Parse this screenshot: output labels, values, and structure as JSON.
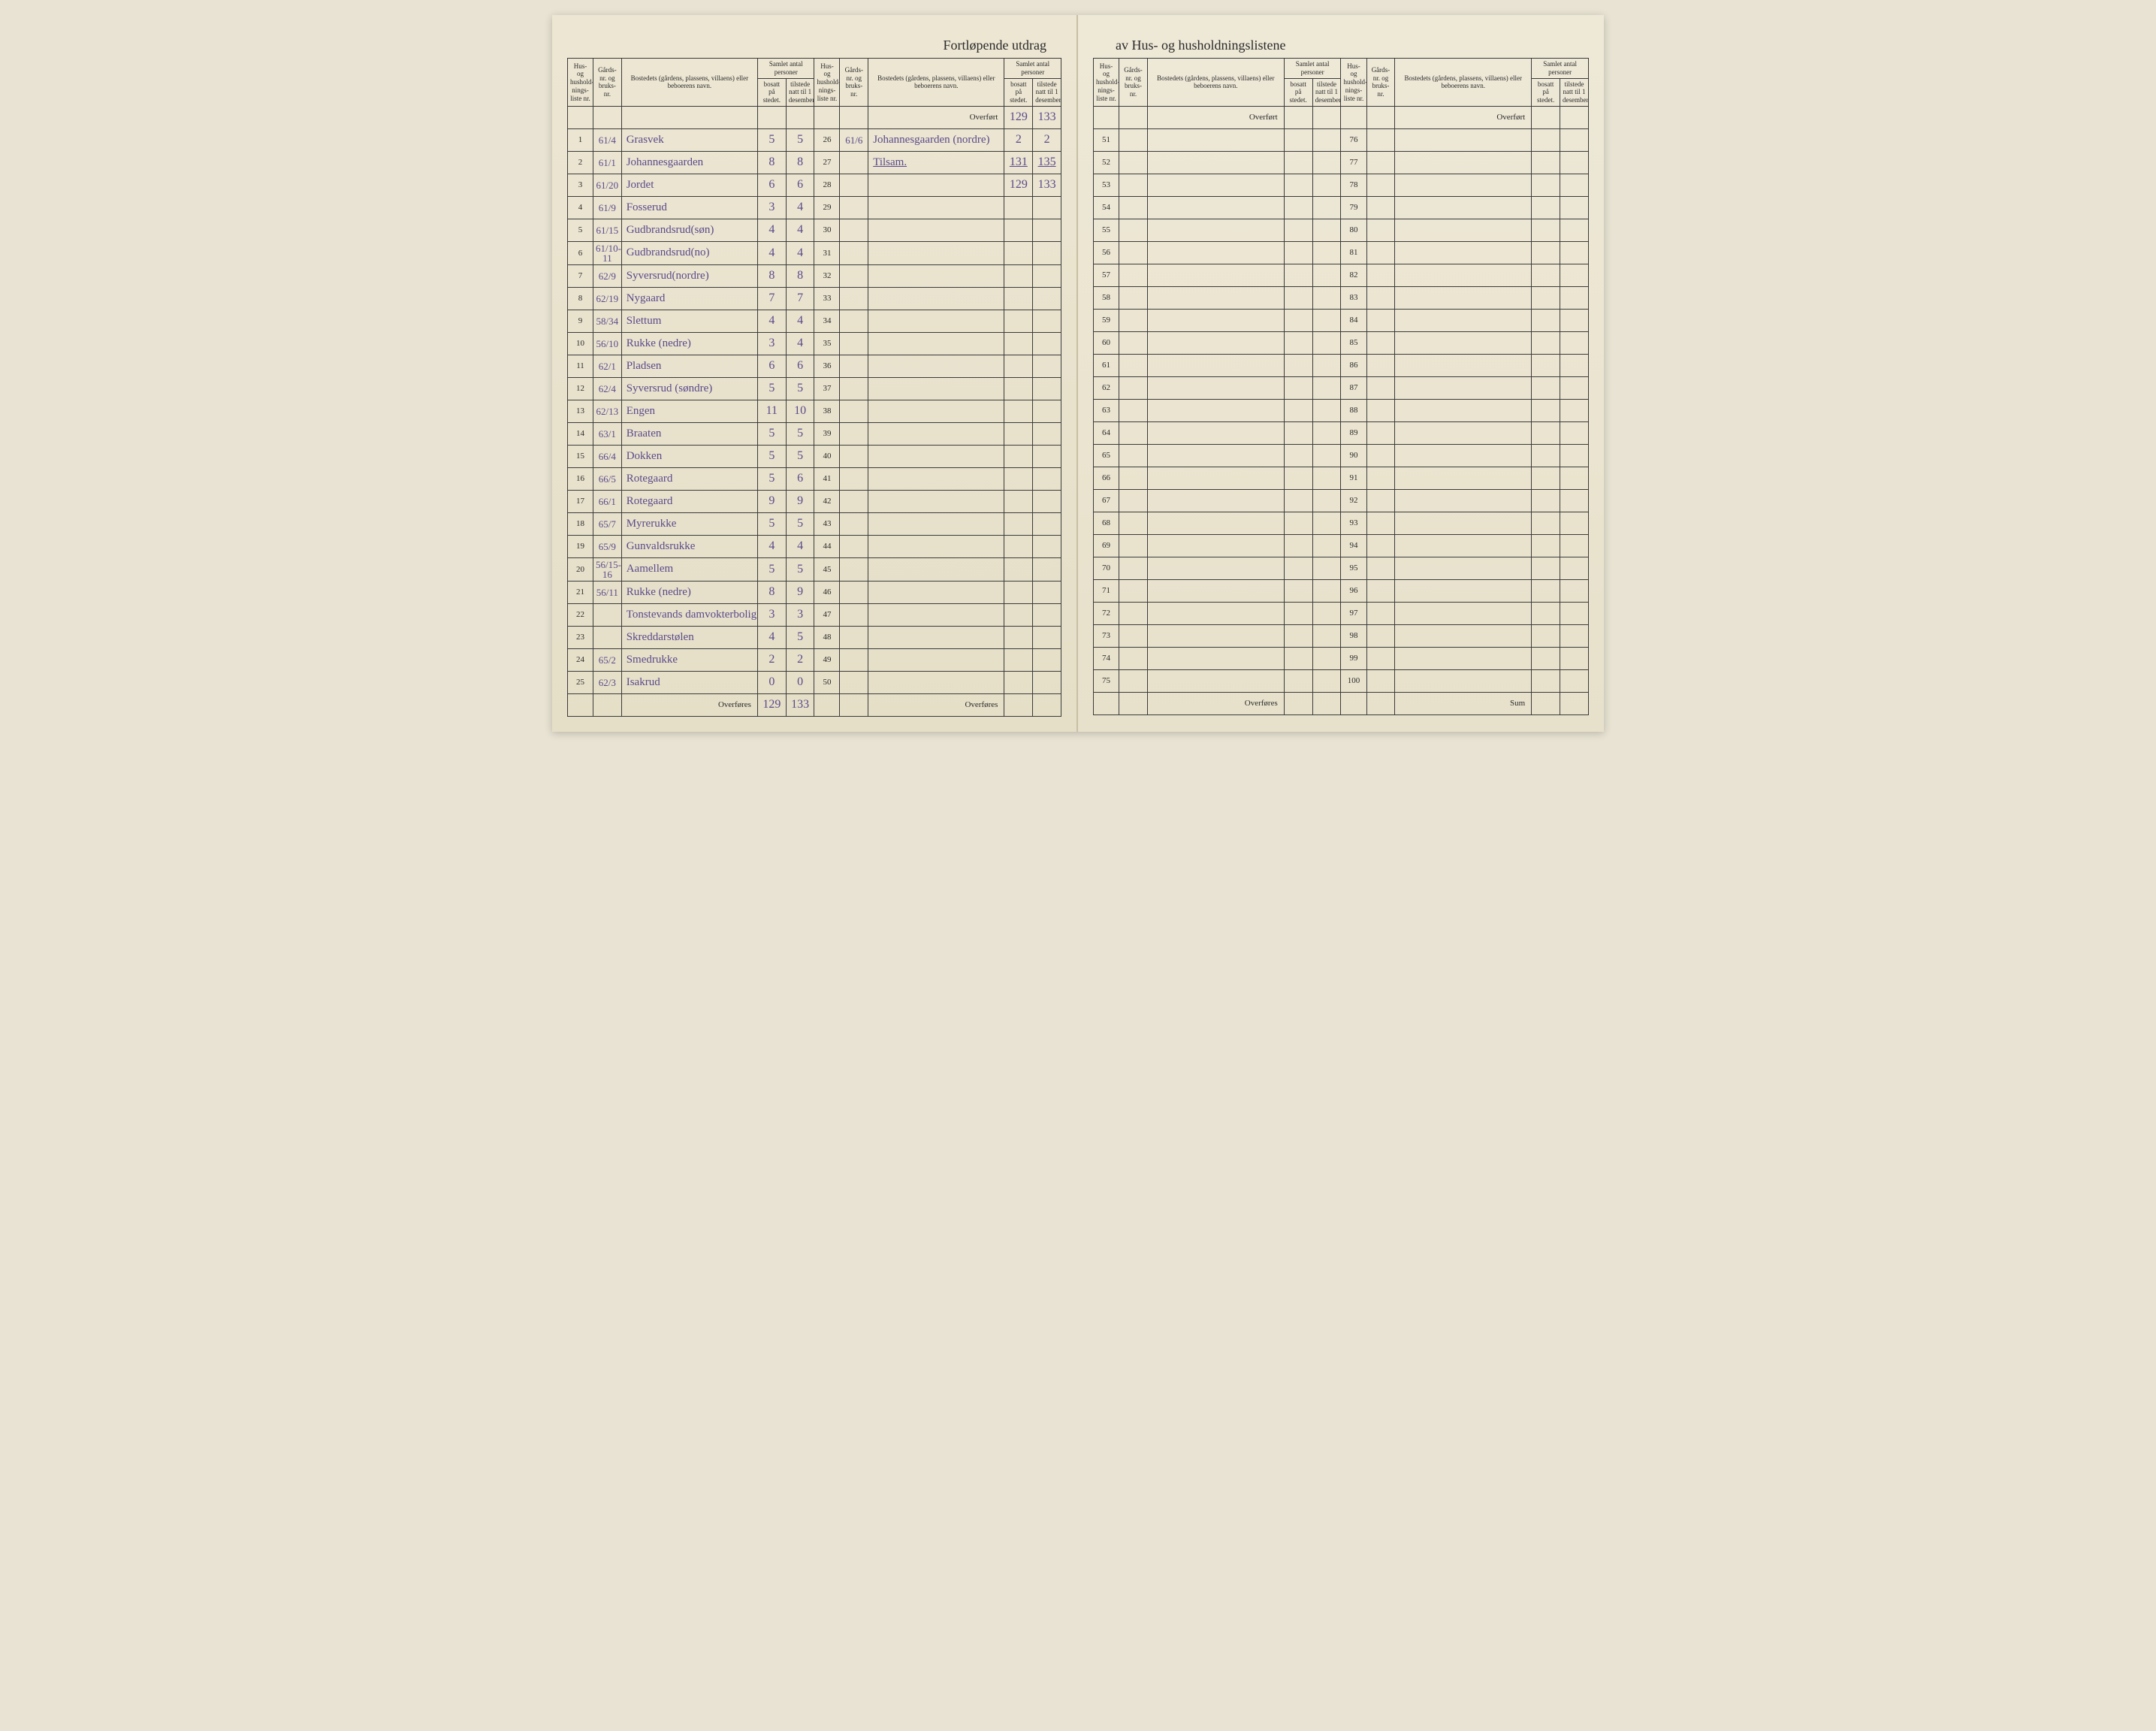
{
  "title_left": "Fortløpende utdrag",
  "title_right": "av Hus- og husholdningslistene",
  "headers": {
    "liste": "Hus- og hushold-nings-liste nr.",
    "gards": "Gårds-nr. og bruks-nr.",
    "bosted": "Bostedets (gårdens, plassens, villaens) eller beboerens navn.",
    "samlet": "Samlet antal personer",
    "bosatt": "bosatt på stedet.",
    "tilstede": "tilstede natt til 1 desember."
  },
  "labels": {
    "overfort": "Overført",
    "overfores": "Overføres",
    "tilsam": "Tilsam.",
    "sum": "Sum"
  },
  "colors": {
    "ink": "#5a4a8a",
    "print": "#2a2a2a",
    "paper": "#ebe5d2",
    "border": "#3a3a3a"
  },
  "col1": [
    {
      "n": 1,
      "g": "61/4",
      "name": "Grasvek",
      "b": "5",
      "t": "5"
    },
    {
      "n": 2,
      "g": "61/1",
      "name": "Johannesgaarden",
      "b": "8",
      "t": "8"
    },
    {
      "n": 3,
      "g": "61/20",
      "name": "Jordet",
      "b": "6",
      "t": "6"
    },
    {
      "n": 4,
      "g": "61/9",
      "name": "Fosserud",
      "b": "3",
      "t": "4"
    },
    {
      "n": 5,
      "g": "61/15",
      "name": "Gudbrandsrud(søn)",
      "b": "4",
      "t": "4"
    },
    {
      "n": 6,
      "g": "61/10-11",
      "name": "Gudbrandsrud(no)",
      "b": "4",
      "t": "4"
    },
    {
      "n": 7,
      "g": "62/9",
      "name": "Syversrud(nordre)",
      "b": "8",
      "t": "8"
    },
    {
      "n": 8,
      "g": "62/19",
      "name": "Nygaard",
      "b": "7",
      "t": "7"
    },
    {
      "n": 9,
      "g": "58/34",
      "name": "Slettum",
      "b": "4",
      "t": "4"
    },
    {
      "n": 10,
      "g": "56/10",
      "name": "Rukke (nedre)",
      "b": "3",
      "t": "4"
    },
    {
      "n": 11,
      "g": "62/1",
      "name": "Pladsen",
      "b": "6",
      "t": "6"
    },
    {
      "n": 12,
      "g": "62/4",
      "name": "Syversrud (søndre)",
      "b": "5",
      "t": "5"
    },
    {
      "n": 13,
      "g": "62/13",
      "name": "Engen",
      "b": "11",
      "t": "10"
    },
    {
      "n": 14,
      "g": "63/1",
      "name": "Braaten",
      "b": "5",
      "t": "5"
    },
    {
      "n": 15,
      "g": "66/4",
      "name": "Dokken",
      "b": "5",
      "t": "5"
    },
    {
      "n": 16,
      "g": "66/5",
      "name": "Rotegaard",
      "b": "5",
      "t": "6"
    },
    {
      "n": 17,
      "g": "66/1",
      "name": "Rotegaard",
      "b": "9",
      "t": "9"
    },
    {
      "n": 18,
      "g": "65/7",
      "name": "Myrerukke",
      "b": "5",
      "t": "5"
    },
    {
      "n": 19,
      "g": "65/9",
      "name": "Gunvaldsrukke",
      "b": "4",
      "t": "4"
    },
    {
      "n": 20,
      "g": "56/15-16",
      "name": "Aamellem",
      "b": "5",
      "t": "5"
    },
    {
      "n": 21,
      "g": "56/11",
      "name": "Rukke (nedre)",
      "b": "8",
      "t": "9"
    },
    {
      "n": 22,
      "g": "",
      "name": "Tonstevands damvokterbolig",
      "b": "3",
      "t": "3"
    },
    {
      "n": 23,
      "g": "",
      "name": "Skreddarstølen",
      "b": "4",
      "t": "5"
    },
    {
      "n": 24,
      "g": "65/2",
      "name": "Smedrukke",
      "b": "2",
      "t": "2"
    },
    {
      "n": 25,
      "g": "62/3",
      "name": "Isakrud",
      "b": "0",
      "t": "0"
    }
  ],
  "col1_footer": {
    "b": "129",
    "t": "133"
  },
  "col2_overfort": {
    "b": "129",
    "t": "133"
  },
  "col2": [
    {
      "n": 26,
      "g": "61/6",
      "name": "Johannesgaarden (nordre)",
      "b": "2",
      "t": "2"
    },
    {
      "n": 27,
      "g": "",
      "name": "",
      "b": "",
      "t": ""
    },
    {
      "n": 28,
      "g": "",
      "name": "",
      "b": "",
      "t": ""
    },
    {
      "n": 29
    },
    {
      "n": 30
    },
    {
      "n": 31
    },
    {
      "n": 32
    },
    {
      "n": 33
    },
    {
      "n": 34
    },
    {
      "n": 35
    },
    {
      "n": 36
    },
    {
      "n": 37
    },
    {
      "n": 38
    },
    {
      "n": 39
    },
    {
      "n": 40
    },
    {
      "n": 41
    },
    {
      "n": 42
    },
    {
      "n": 43
    },
    {
      "n": 44
    },
    {
      "n": 45
    },
    {
      "n": 46
    },
    {
      "n": 47
    },
    {
      "n": 48
    },
    {
      "n": 49
    },
    {
      "n": 50
    }
  ],
  "col2_tilsam": {
    "b": "131",
    "t": "135"
  },
  "col2_sub": {
    "b": "129",
    "t": "133"
  },
  "col3": [
    {
      "n": 51
    },
    {
      "n": 52
    },
    {
      "n": 53
    },
    {
      "n": 54
    },
    {
      "n": 55
    },
    {
      "n": 56
    },
    {
      "n": 57
    },
    {
      "n": 58
    },
    {
      "n": 59
    },
    {
      "n": 60
    },
    {
      "n": 61
    },
    {
      "n": 62
    },
    {
      "n": 63
    },
    {
      "n": 64
    },
    {
      "n": 65
    },
    {
      "n": 66
    },
    {
      "n": 67
    },
    {
      "n": 68
    },
    {
      "n": 69
    },
    {
      "n": 70
    },
    {
      "n": 71
    },
    {
      "n": 72
    },
    {
      "n": 73
    },
    {
      "n": 74
    },
    {
      "n": 75
    }
  ],
  "col4": [
    {
      "n": 76
    },
    {
      "n": 77
    },
    {
      "n": 78
    },
    {
      "n": 79
    },
    {
      "n": 80
    },
    {
      "n": 81
    },
    {
      "n": 82
    },
    {
      "n": 83
    },
    {
      "n": 84
    },
    {
      "n": 85
    },
    {
      "n": 86
    },
    {
      "n": 87
    },
    {
      "n": 88
    },
    {
      "n": 89
    },
    {
      "n": 90
    },
    {
      "n": 91
    },
    {
      "n": 92
    },
    {
      "n": 93
    },
    {
      "n": 94
    },
    {
      "n": 95
    },
    {
      "n": 96
    },
    {
      "n": 97
    },
    {
      "n": 98
    },
    {
      "n": 99
    },
    {
      "n": 100
    }
  ]
}
